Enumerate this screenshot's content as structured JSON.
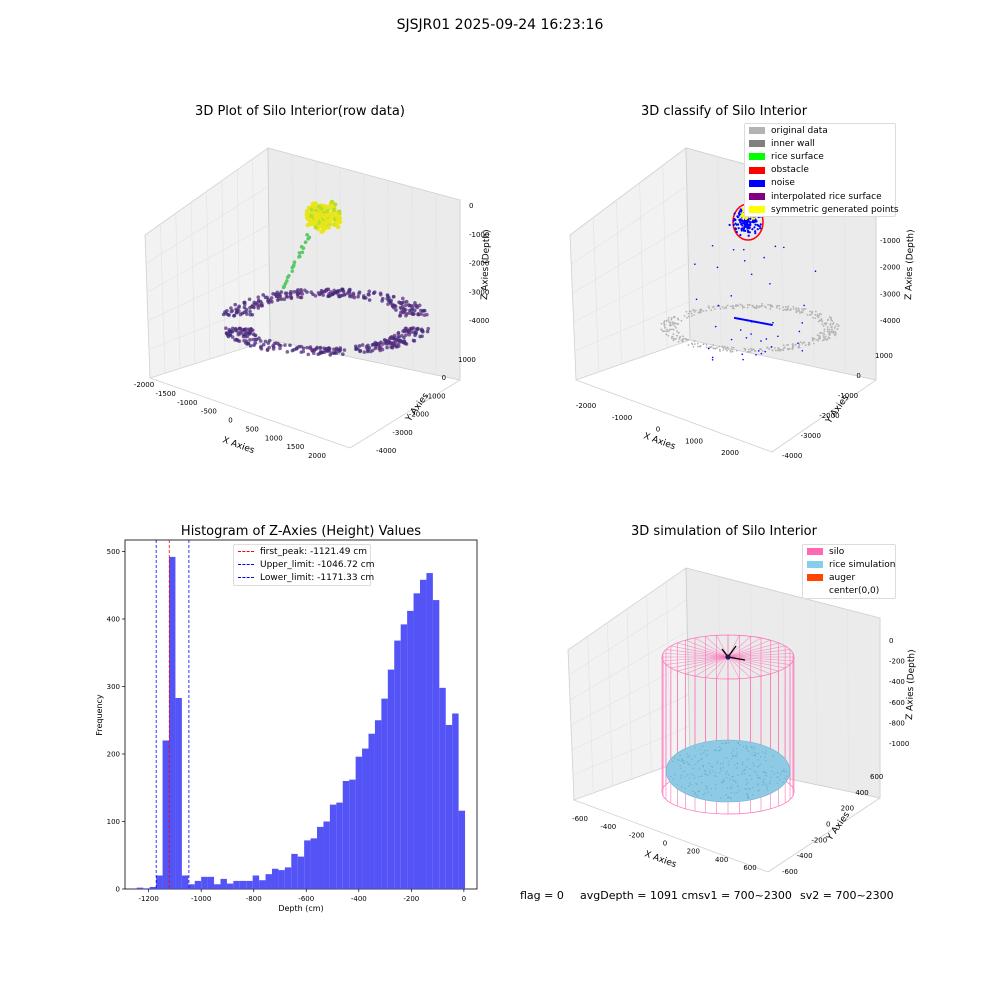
{
  "suptitle": "SJSJR01 2025-09-24 16:23:16",
  "panels": {
    "raw": {
      "title": "3D Plot of Silo Interior(row data)",
      "xlabel": "X Axies",
      "ylabel": "Y Axies",
      "zlabel": "Z Axies (Depth)",
      "xticks": [
        "-2000",
        "-1500",
        "-1000",
        "-500",
        "0",
        "500",
        "1000",
        "1500",
        "2000"
      ],
      "yticks": [
        "1000",
        "0",
        "-1000",
        "-2000",
        "-3000",
        "-4000"
      ],
      "zticks": [
        "0",
        "-1000",
        "-2000",
        "-3000",
        "-4000"
      ]
    },
    "classify": {
      "title": "3D classify of Silo Interior",
      "xlabel": "X Axies",
      "ylabel": "Y Axies",
      "zlabel": "Z Axies (Depth)",
      "xticks": [
        "-2000",
        "-1000",
        "0",
        "1000",
        "2000"
      ],
      "yticks": [
        "1000",
        "0",
        "-1000",
        "-2000",
        "-3000",
        "-4000"
      ],
      "zticks": [
        "-1000",
        "-2000",
        "-3000",
        "-4000"
      ],
      "legend": [
        {
          "label": "original data",
          "color": "#b3b3b3"
        },
        {
          "label": "inner wall",
          "color": "#808080"
        },
        {
          "label": "rice surface",
          "color": "#00ff00"
        },
        {
          "label": "obstacle",
          "color": "#ff0000"
        },
        {
          "label": "noise",
          "color": "#0000ff"
        },
        {
          "label": "interpolated rice surface",
          "color": "#800080"
        },
        {
          "label": "symmetric generated points",
          "color": "#ffff00"
        }
      ]
    },
    "simulation": {
      "title": "3D simulation of Silo Interior",
      "xlabel": "X Axies",
      "ylabel": "Y Axies",
      "zlabel": "Z Axies (Depth)",
      "xticks": [
        "-600",
        "-400",
        "-200",
        "0",
        "200",
        "400",
        "600"
      ],
      "yticks": [
        "600",
        "400",
        "200",
        "0",
        "-200",
        "-400",
        "-600"
      ],
      "zticks": [
        "0",
        "-200",
        "-400",
        "-600",
        "-800",
        "-1000"
      ],
      "legend": [
        {
          "label": "silo",
          "color": "#ff69b4"
        },
        {
          "label": "rice simulation",
          "color": "#87ceeb"
        },
        {
          "label": "auger",
          "color": "#ff4500"
        },
        {
          "label": "center(0,0)",
          "color": ""
        }
      ]
    }
  },
  "footer": {
    "flag": "flag = 0",
    "avg": "avgDepth = 1091 cmsv1 = 700~2300",
    "sv2": "sv2 = 700~2300"
  },
  "colors": {
    "hist_bar": "#4a4af5",
    "peak_line": "#ff0000",
    "limit_line": "#0000ff"
  },
  "chart_data": {
    "type": "bar",
    "title": "Histogram of Z-Axies (Height) Values",
    "xlabel": "Depth (cm)",
    "ylabel": "Frequency",
    "xlim": [
      -1290,
      50
    ],
    "ylim": [
      0,
      517
    ],
    "xticks": [
      -1200,
      -1000,
      -800,
      -600,
      -400,
      -200,
      0
    ],
    "yticks": [
      0,
      100,
      200,
      300,
      400,
      500
    ],
    "bin_width": 24.5,
    "bin_left_edges": [
      -1245,
      -1220.5,
      -1196,
      -1171.5,
      -1147,
      -1122.5,
      -1098,
      -1073.5,
      -1049,
      -1024.5,
      -1000,
      -975.5,
      -951,
      -926.5,
      -902,
      -877.5,
      -853,
      -828.5,
      -804,
      -779.5,
      -755,
      -730.5,
      -706,
      -681.5,
      -657,
      -632.5,
      -608,
      -583.5,
      -559,
      -534.5,
      -510,
      -485.5,
      -461,
      -436.5,
      -412,
      -387.5,
      -363,
      -338.5,
      -314,
      -289.5,
      -265,
      -240.5,
      -216,
      -191.5,
      -167,
      -142.5,
      -118,
      -93.5,
      -69,
      -44.5,
      -20
    ],
    "values": [
      2,
      1,
      3,
      20,
      220,
      492,
      283,
      20,
      7,
      12,
      18,
      18,
      7,
      15,
      8,
      12,
      12,
      12,
      20,
      13,
      22,
      30,
      28,
      32,
      52,
      48,
      72,
      75,
      92,
      100,
      125,
      128,
      160,
      162,
      196,
      208,
      230,
      250,
      282,
      325,
      368,
      392,
      412,
      438,
      458,
      468,
      428,
      298,
      243,
      260,
      116
    ],
    "vlines": [
      {
        "x": -1121.49,
        "label": "first_peak: -1121.49 cm",
        "color": "#ff0000"
      },
      {
        "x": -1046.72,
        "label": "Upper_limit: -1046.72 cm",
        "color": "#0000ff"
      },
      {
        "x": -1171.33,
        "label": "Lower_limit: -1171.33 cm",
        "color": "#0000ff"
      }
    ]
  }
}
